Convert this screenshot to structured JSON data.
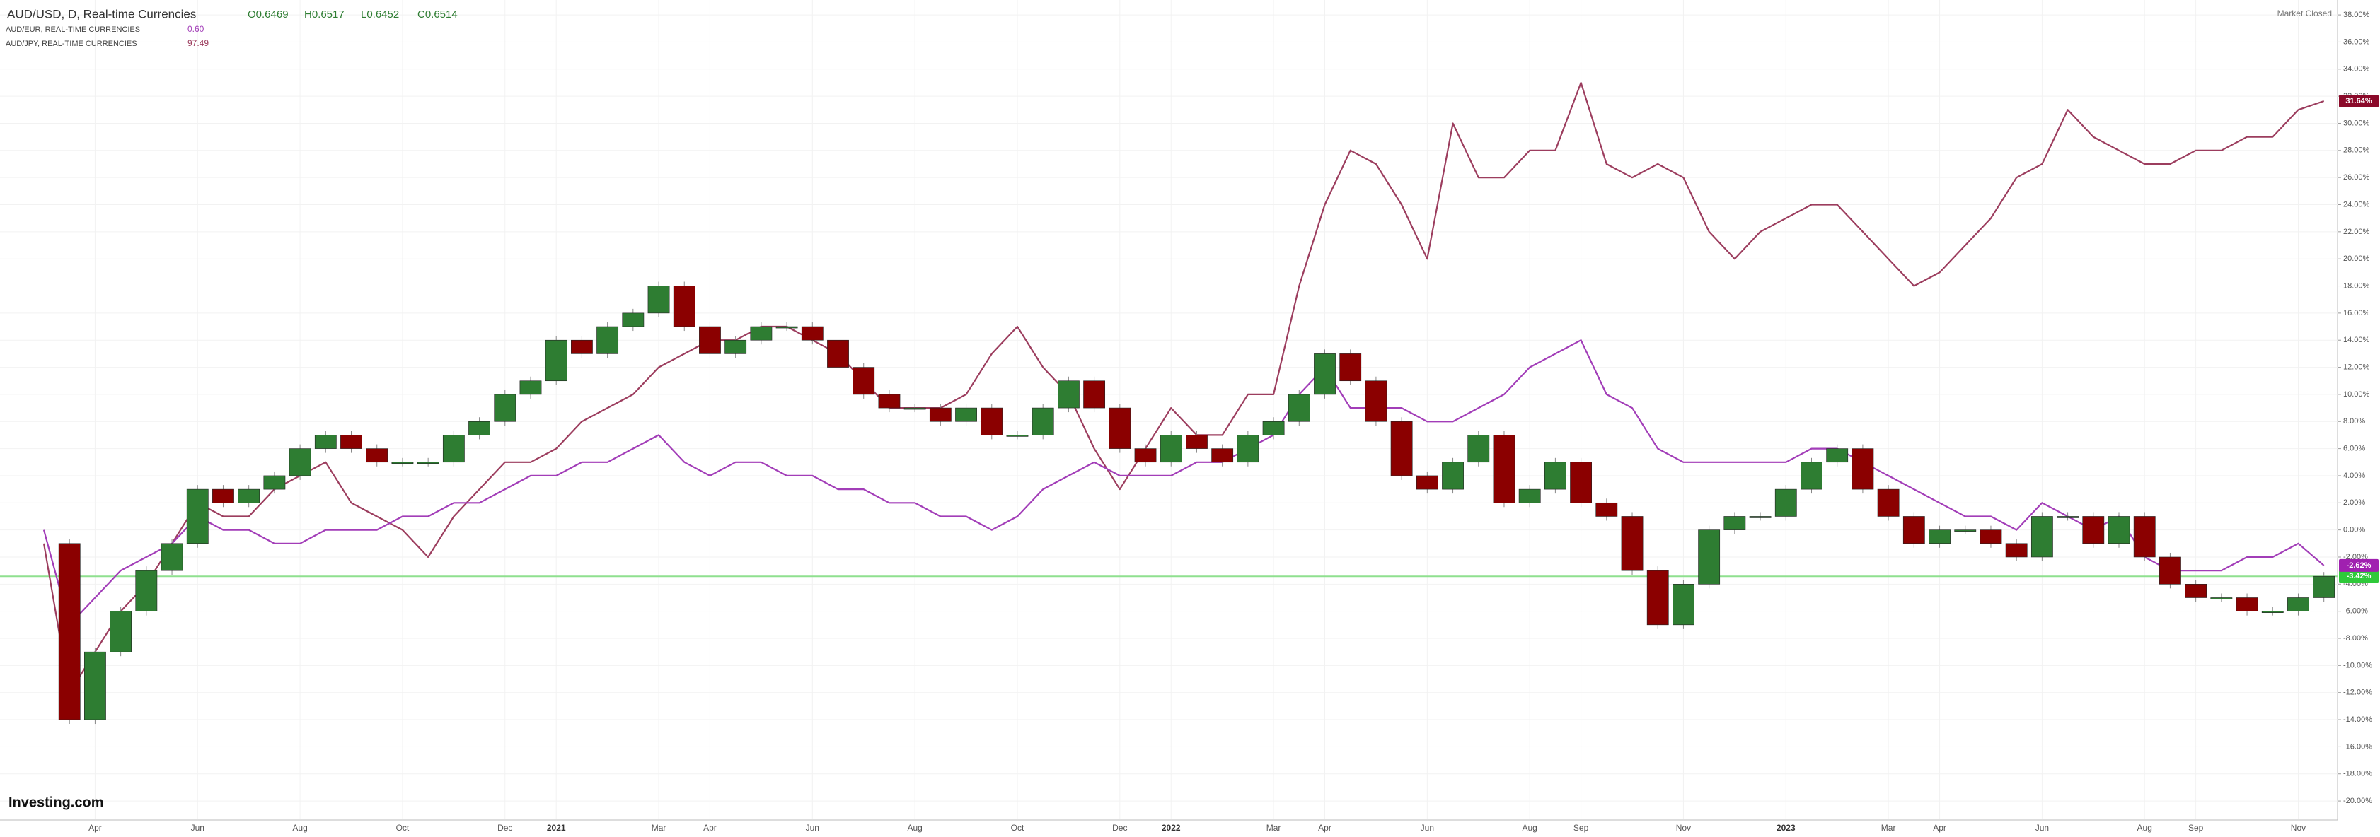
{
  "header": {
    "title": "AUD/USD, D, Real-time Currencies",
    "ohlc": [
      "O0.6469",
      "H0.6517",
      "L0.6452",
      "C0.6514"
    ],
    "status": "Market Closed",
    "logo": "Investing.com"
  },
  "chart_data": {
    "type": "line",
    "categories": [
      null,
      null,
      "Apr",
      null,
      null,
      null,
      "Jun",
      null,
      null,
      null,
      "Aug",
      null,
      null,
      null,
      "Oct",
      null,
      null,
      null,
      "Dec",
      null,
      "2021",
      null,
      null,
      null,
      "Mar",
      null,
      "Apr",
      null,
      null,
      null,
      "Jun",
      null,
      null,
      null,
      "Aug",
      null,
      null,
      null,
      "Oct",
      null,
      null,
      null,
      "Dec",
      null,
      "2022",
      null,
      null,
      null,
      "Mar",
      null,
      "Apr",
      null,
      null,
      null,
      "Jun",
      null,
      null,
      null,
      "Aug",
      null,
      "Sep",
      null,
      null,
      null,
      "Nov",
      null,
      null,
      null,
      "2023",
      null,
      null,
      null,
      "Mar",
      null,
      "Apr",
      null,
      null,
      null,
      "Jun",
      null,
      null,
      null,
      "Aug",
      null,
      "Sep",
      null,
      null,
      null,
      "Nov",
      null
    ],
    "series": [
      {
        "name": "AUD/USD, D, Real-time Currencies",
        "style": "candlestick",
        "color_up": "#2e7d32",
        "color_down": "#8b0000",
        "last_value_label": "-3.42%",
        "badge_color": "#2fc93a",
        "values": [
          -1,
          -14,
          -9,
          -6,
          -3,
          -1,
          3,
          2,
          3,
          4,
          6,
          7,
          6,
          5,
          5,
          5,
          7,
          8,
          10,
          11,
          14,
          13,
          15,
          16,
          18,
          15,
          13,
          14,
          15,
          15,
          14,
          12,
          10,
          9,
          9,
          8,
          9,
          7,
          7,
          9,
          11,
          9,
          6,
          5,
          7,
          6,
          5,
          7,
          8,
          10,
          13,
          11,
          8,
          4,
          3,
          5,
          7,
          2,
          3,
          5,
          2,
          1,
          -3,
          -7,
          -4,
          0,
          1,
          1,
          3,
          5,
          6,
          3,
          1,
          -1,
          0,
          0,
          -1,
          -2,
          1,
          1,
          -1,
          1,
          -2,
          -4,
          -5,
          -5,
          -6,
          -6,
          -5,
          -3.42
        ]
      },
      {
        "name": "AUD/EUR, REAL-TIME CURRENCIES",
        "legend_value": "0.60",
        "style": "line",
        "color": "#a23db8",
        "last_value_label": "-2.62%",
        "badge_color": "#a020b0",
        "values": [
          0,
          -7,
          -5,
          -3,
          -2,
          -1,
          1,
          0,
          0,
          -1,
          -1,
          0,
          0,
          0,
          1,
          1,
          2,
          2,
          3,
          4,
          4,
          5,
          5,
          6,
          7,
          5,
          4,
          5,
          5,
          4,
          4,
          3,
          3,
          2,
          2,
          1,
          1,
          0,
          1,
          3,
          4,
          5,
          4,
          4,
          4,
          5,
          5,
          6,
          7,
          10,
          12,
          9,
          9,
          9,
          8,
          8,
          9,
          10,
          12,
          13,
          14,
          10,
          9,
          6,
          5,
          5,
          5,
          5,
          5,
          6,
          6,
          5,
          4,
          3,
          2,
          1,
          1,
          0,
          2,
          1,
          0,
          1,
          -2,
          -3,
          -3,
          -3,
          -2,
          -2,
          -1,
          -2.62
        ]
      },
      {
        "name": "AUD/JPY, REAL-TIME CURRENCIES",
        "legend_value": "97.49",
        "style": "line",
        "color": "#9c3d5e",
        "last_value_label": "31.64%",
        "badge_color": "#8b0a2a",
        "values": [
          -1,
          -12,
          -9,
          -6,
          -4,
          -1,
          2,
          1,
          1,
          3,
          4,
          5,
          2,
          1,
          0,
          -2,
          1,
          3,
          5,
          5,
          6,
          8,
          9,
          10,
          12,
          13,
          14,
          14,
          15,
          15,
          14,
          13,
          11,
          9,
          9,
          9,
          10,
          13,
          15,
          12,
          10,
          6,
          3,
          6,
          9,
          7,
          7,
          10,
          10,
          18,
          24,
          28,
          27,
          24,
          20,
          30,
          26,
          26,
          28,
          28,
          33,
          27,
          26,
          27,
          26,
          22,
          20,
          22,
          23,
          24,
          24,
          22,
          20,
          18,
          19,
          21,
          23,
          26,
          27,
          31,
          29,
          28,
          27,
          27,
          28,
          28,
          29,
          29,
          31,
          31.64
        ]
      }
    ],
    "ylim": [
      -21.3,
      39.1
    ],
    "yticks": [
      {
        "value": 38,
        "label": "38.00%"
      },
      {
        "value": 36,
        "label": "36.00%"
      },
      {
        "value": 34,
        "label": "34.00%"
      },
      {
        "value": 32,
        "label": "32.00%"
      },
      {
        "value": 30,
        "label": "30.00%"
      },
      {
        "value": 28,
        "label": "28.00%"
      },
      {
        "value": 26,
        "label": "26.00%"
      },
      {
        "value": 24,
        "label": "24.00%"
      },
      {
        "value": 22,
        "label": "22.00%"
      },
      {
        "value": 20,
        "label": "20.00%"
      },
      {
        "value": 18,
        "label": "18.00%"
      },
      {
        "value": 16,
        "label": "16.00%"
      },
      {
        "value": 14,
        "label": "14.00%"
      },
      {
        "value": 12,
        "label": "12.00%"
      },
      {
        "value": 10,
        "label": "10.00%"
      },
      {
        "value": 8,
        "label": "8.00%"
      },
      {
        "value": 6,
        "label": "6.00%"
      },
      {
        "value": 4,
        "label": "4.00%"
      },
      {
        "value": 2,
        "label": "2.00%"
      },
      {
        "value": 0,
        "label": "0.00%"
      },
      {
        "value": -2,
        "label": "-2.00%"
      },
      {
        "value": -4,
        "label": "-4.00%"
      },
      {
        "value": -6,
        "label": "-6.00%"
      },
      {
        "value": -8,
        "label": "-8.00%"
      },
      {
        "value": -10,
        "label": "-10.00%"
      },
      {
        "value": -12,
        "label": "-12.00%"
      },
      {
        "value": -14,
        "label": "-14.00%"
      },
      {
        "value": -16,
        "label": "-16.00%"
      },
      {
        "value": -18,
        "label": "-18.00%"
      },
      {
        "value": -20,
        "label": "-20.00%"
      }
    ],
    "grid": true,
    "price_line_color": "#8fe08f"
  }
}
